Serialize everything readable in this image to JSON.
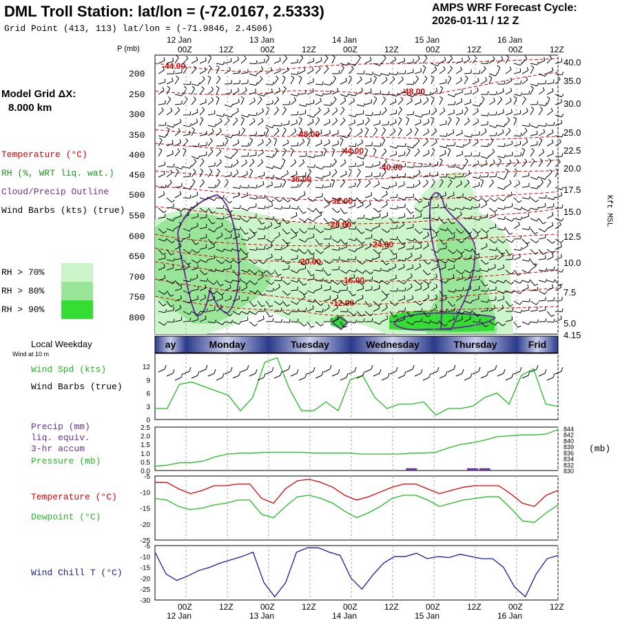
{
  "header": {
    "title": "DML Troll Station:  lat/lon = (-72.0167, 2.5333)",
    "subtitle": "Grid Point (413, 113) lat/lon = (-71.9846, 2.4506)",
    "cycle_label": "AMPS WRF Forecast Cycle:",
    "cycle_value": "2026-01-11 / 12  Z"
  },
  "side_labels": {
    "model_grid": "Model Grid ΔX:",
    "model_grid_value": "8.000 km",
    "temperature": "Temperature (°C)",
    "rh": "RH (%, WRT liq. wat.)",
    "cloud": "Cloud/Precip Outline",
    "wind_barbs": "Wind Barbs (kts) (true)",
    "rh70": "RH > 70%",
    "rh80": "RH > 80%",
    "rh90": "RH > 90%",
    "local_weekday": "Local Weekday",
    "wind_10m": "Wind at 10 m",
    "wind_spd": "Wind Spd (kts)",
    "wind_barbs_true": "Wind Barbs (true)",
    "precip": "Precip (mm)",
    "liq": "liq. equiv.",
    "accum": "3-hr accum",
    "pressure": "Pressure (mb)",
    "temp2": "Temperature (°C)",
    "dewpoint": "Dewpoint (°C)",
    "windchill": "Wind Chill T (°C)",
    "mb_unit": "(mb)",
    "kft": "Kft MSL",
    "p_label": "P (mb)"
  },
  "colors": {
    "temperature": "#e00000",
    "rh70": "#ccf5cc",
    "rh80": "#99e699",
    "rh90": "#33dd33",
    "cloud": "#663399",
    "green_line": "#22bb22",
    "windchill": "#1a1aa0",
    "weekday_dark": "#2c3a8c",
    "weekday_light": "#c8cdea"
  },
  "time_axis": {
    "top_ticks": [
      "00Z",
      "12Z",
      "00Z",
      "12Z",
      "00Z",
      "12Z",
      "00Z",
      "12Z",
      "00Z",
      "12Z"
    ],
    "top_dates": [
      "12 Jan",
      "13 Jan",
      "14 Jan",
      "15 Jan",
      "16 Jan"
    ],
    "bottom_ticks": [
      "00Z",
      "12Z",
      "00Z",
      "12Z",
      "00Z",
      "12Z",
      "00Z",
      "12Z",
      "00Z",
      "12Z"
    ],
    "bottom_dates": [
      "12 Jan",
      "13 Jan",
      "14 Jan",
      "15 Jan",
      "16 Jan"
    ],
    "weekdays": [
      "ay",
      "Monday",
      "Tuesday",
      "Wednesday",
      "Thursday",
      "Frid"
    ]
  },
  "chart_data": [
    {
      "type": "heatmap",
      "pressure_ticks": [
        "200",
        "250",
        "300",
        "350",
        "400",
        "450",
        "500",
        "550",
        "600",
        "650",
        "700",
        "750",
        "800"
      ],
      "height_ticks": [
        "40.0",
        "35.0",
        "30.0",
        "25.0",
        "22.5",
        "20.0",
        "17.5",
        "15.0",
        "12.5",
        "10.0",
        "7.5",
        "5.0",
        "4.15"
      ],
      "temperature_labels": [
        "-44.00",
        "-48.00",
        "-48.00",
        "-44.00",
        "-40.00",
        "-36.00",
        "-32.00",
        "-28.00",
        "-24.00",
        "-20.00",
        "-16.00",
        "-12.00"
      ]
    },
    {
      "type": "line",
      "title": "Wind Spd (kts)",
      "ylim": [
        0,
        15
      ],
      "yticks": [
        "0",
        "3",
        "6",
        "9",
        "12"
      ],
      "values": [
        2.5,
        2.5,
        8,
        8.5,
        7.5,
        6.5,
        5.5,
        2,
        5,
        13,
        14,
        7,
        2,
        2,
        4,
        2,
        9,
        10,
        5,
        2.5,
        3.5,
        3.5,
        4,
        1,
        2.5,
        2.5,
        3,
        5,
        6,
        3.5,
        10,
        11.5,
        3.5,
        3
      ]
    },
    {
      "type": "line",
      "title": "Precip / Pressure",
      "ylim": [
        0,
        2.5
      ],
      "yticks": [
        "0.0",
        "0.5",
        "1.0",
        "1.5",
        "2.0",
        "2.5"
      ],
      "right_ticks": [
        "844",
        "842",
        "840",
        "839",
        "836",
        "834",
        "832",
        "830"
      ],
      "pressure": [
        0.25,
        0.3,
        0.45,
        0.45,
        0.55,
        0.8,
        0.95,
        1,
        1,
        1.05,
        1.05,
        1.05,
        1.05,
        1,
        1,
        1,
        1,
        0.95,
        0.95,
        0.95,
        0.95,
        1,
        1,
        1.05,
        1.3,
        1.5,
        1.6,
        1.75,
        1.95,
        2,
        2.05,
        2.05,
        2.1,
        2.35
      ],
      "precip": [
        0,
        0,
        0,
        0,
        0,
        0,
        0,
        0,
        0,
        0,
        0,
        0,
        0,
        0,
        0,
        0,
        0,
        0,
        0,
        0,
        0,
        0.05,
        0,
        0,
        0,
        0,
        0.05,
        0.05,
        0,
        0,
        0,
        0,
        0,
        0
      ]
    },
    {
      "type": "line",
      "title": "Temperature / Dewpoint",
      "ylim": [
        -25,
        -5
      ],
      "yticks": [
        "-5",
        "-10",
        "-15",
        "-20",
        "-25"
      ],
      "series": [
        {
          "name": "Temperature",
          "values": [
            -7,
            -7,
            -9,
            -10.5,
            -9.5,
            -8,
            -8,
            -7.5,
            -7.5,
            -12,
            -13.5,
            -9,
            -6.5,
            -6,
            -7,
            -8.5,
            -11,
            -12.5,
            -11.5,
            -10,
            -8.5,
            -7.5,
            -7.5,
            -9,
            -10.5,
            -9.5,
            -8.5,
            -8,
            -8,
            -8,
            -10.5,
            -13.5,
            -14.5,
            -11,
            -9.5
          ]
        },
        {
          "name": "Dewpoint",
          "values": [
            -12,
            -12.5,
            -14.5,
            -15.5,
            -15,
            -14,
            -13.5,
            -12.5,
            -12.5,
            -17,
            -18,
            -14.5,
            -11.5,
            -11,
            -12,
            -13.5,
            -16,
            -18,
            -16.5,
            -14.5,
            -12,
            -11,
            -11,
            -12.5,
            -14.5,
            -13.5,
            -12.5,
            -12,
            -11.5,
            -11.5,
            -15,
            -19,
            -19.5,
            -16.5,
            -14
          ]
        }
      ]
    },
    {
      "type": "line",
      "title": "Wind Chill T (°C)",
      "ylim": [
        -30,
        -5
      ],
      "yticks": [
        "-5",
        "-10",
        "-15",
        "-20",
        "-25",
        "-30"
      ],
      "values": [
        -8,
        -18,
        -21,
        -19,
        -16.5,
        -15,
        -13,
        -11.5,
        -10,
        -8,
        -22,
        -28.5,
        -22,
        -8,
        -6,
        -6,
        -8,
        -9.5,
        -20,
        -25,
        -18.5,
        -13,
        -10,
        -10,
        -8.5,
        -11,
        -10,
        -10.5,
        -9,
        -10,
        -11,
        -11,
        -15,
        -24,
        -28.5,
        -18,
        -11,
        -9.5
      ]
    }
  ]
}
